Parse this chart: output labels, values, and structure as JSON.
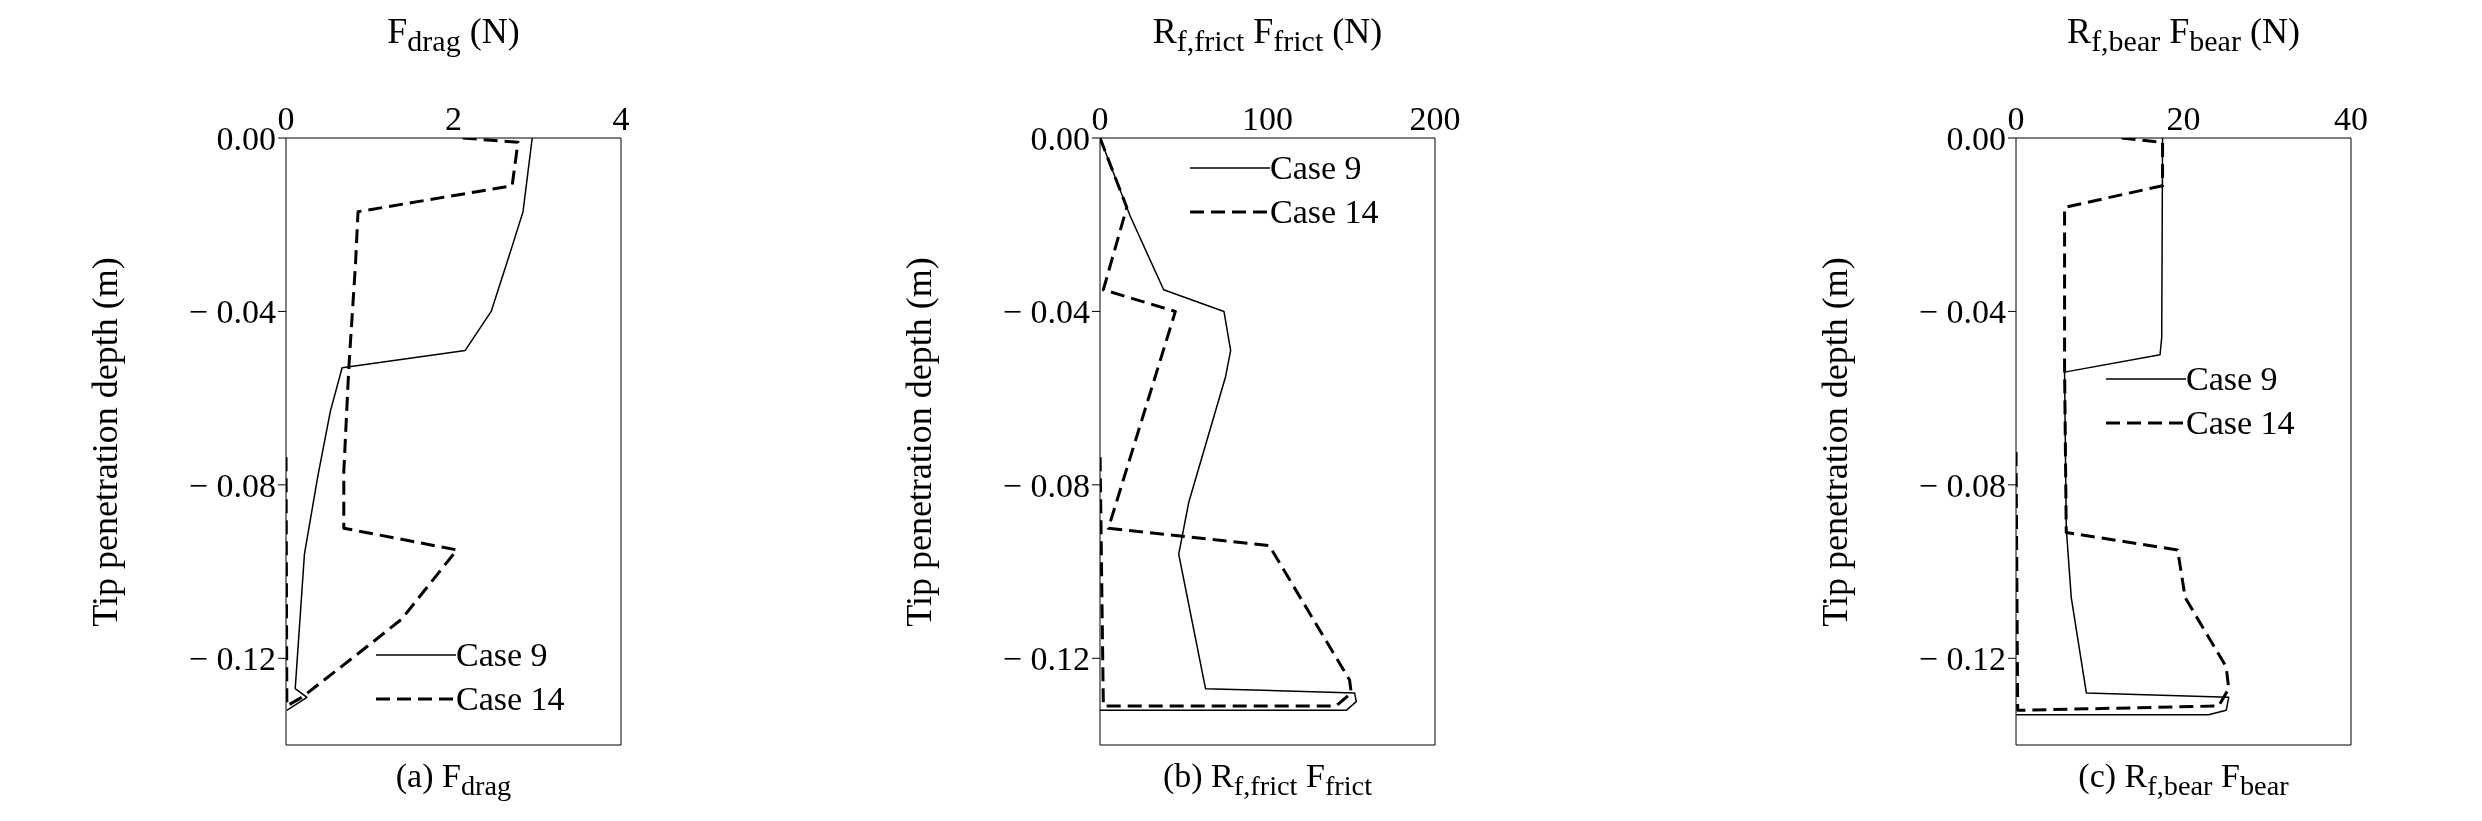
{
  "chart_data": [
    {
      "type": "line",
      "xlabel": "F$_{drag}$ (N)",
      "ylabel": "Tip penetration depth (m)",
      "annotations": [
        "(a) F$_{drag}$"
      ],
      "xlim": [
        0,
        4
      ],
      "xticks": [
        0,
        2,
        4
      ],
      "ylim": [
        -0.14,
        0
      ],
      "yticks": [
        {
          "value": 0,
          "label": "0.00"
        },
        {
          "value": -0.04,
          "label": "− 0.04"
        },
        {
          "value": -0.08,
          "label": "− 0.08"
        },
        {
          "value": -0.12,
          "label": "− 0.12"
        }
      ],
      "legend": "bottom right",
      "grid": false,
      "marker": "none",
      "series": [
        {
          "name": "Case 9",
          "color": "#000000",
          "line_style": "solid",
          "x": [
            2.94,
            2.83,
            2.7,
            2.45,
            2.14,
            0.67,
            0.53,
            0.38,
            0.22,
            0.11,
            0.25,
            0.01
          ],
          "values": [
            0,
            -0.017,
            -0.025,
            -0.04,
            -0.049,
            -0.053,
            -0.063,
            -0.078,
            -0.096,
            -0.127,
            -0.129,
            -0.132
          ]
        },
        {
          "name": "Case 14",
          "color": "#000000",
          "line_style": "dashed",
          "x": [
            2.11,
            2.77,
            2.7,
            0.86,
            0.83,
            0.75,
            0.69,
            0.69,
            2.04,
            1.38,
            0.79,
            0.19,
            0.01,
            0
          ],
          "values": [
            0,
            -0.001,
            -0.011,
            -0.017,
            -0.029,
            -0.053,
            -0.077,
            -0.09,
            -0.095,
            -0.111,
            -0.12,
            -0.129,
            -0.131,
            -0.072
          ]
        }
      ]
    },
    {
      "type": "line",
      "xlabel": "R$_{f,frict}$ F$_{frict}$ (N)",
      "ylabel": "Tip penetration depth (m)",
      "annotations": [
        "(b) R$_{f,frict}$ F$_{frict}$"
      ],
      "xlim": [
        0,
        200
      ],
      "xticks": [
        0,
        100,
        200
      ],
      "ylim": [
        -0.14,
        0
      ],
      "yticks": [
        {
          "value": 0,
          "label": "0.00"
        },
        {
          "value": -0.04,
          "label": "− 0.04"
        },
        {
          "value": -0.08,
          "label": "− 0.08"
        },
        {
          "value": -0.12,
          "label": "− 0.12"
        }
      ],
      "legend": "top right",
      "grid": false,
      "marker": "none",
      "series": [
        {
          "name": "Case 9",
          "color": "#000000",
          "line_style": "solid",
          "x": [
            0,
            18,
            38,
            74,
            78,
            75,
            53,
            47,
            63,
            152,
            153,
            147,
            0
          ],
          "values": [
            0,
            -0.018,
            -0.035,
            -0.04,
            -0.049,
            -0.055,
            -0.084,
            -0.096,
            -0.127,
            -0.128,
            -0.13,
            -0.132,
            -0.132
          ]
        },
        {
          "name": "Case 14",
          "color": "#000000",
          "line_style": "dashed",
          "x": [
            0,
            16,
            2,
            45,
            5,
            101,
            149,
            150,
            141,
            2,
            0
          ],
          "values": [
            0,
            -0.016,
            -0.035,
            -0.04,
            -0.09,
            -0.094,
            -0.125,
            -0.128,
            -0.131,
            -0.131,
            -0.072
          ]
        }
      ]
    },
    {
      "type": "line",
      "xlabel": "R$_{f,bear}$ F$_{bear}$ (N)",
      "ylabel": "Tip penetration depth (m)",
      "annotations": [
        "(c) R$_{f,bear}$ F$_{bear}$"
      ],
      "xlim": [
        0,
        40
      ],
      "xticks": [
        0,
        20,
        40
      ],
      "ylim": [
        -0.14,
        0
      ],
      "yticks": [
        {
          "value": 0,
          "label": "0.00"
        },
        {
          "value": -0.04,
          "label": "− 0.04"
        },
        {
          "value": -0.08,
          "label": "− 0.08"
        },
        {
          "value": -0.12,
          "label": "− 0.12"
        }
      ],
      "legend": "right",
      "grid": false,
      "marker": "none",
      "series": [
        {
          "name": "Case 9",
          "color": "#000000",
          "line_style": "solid",
          "x": [
            17.5,
            17.4,
            17.2,
            5.8,
            6,
            6.6,
            8.4,
            25.4,
            25.1,
            23,
            0
          ],
          "values": [
            0,
            -0.046,
            -0.05,
            -0.054,
            -0.09,
            -0.106,
            -0.128,
            -0.129,
            -0.132,
            -0.133,
            -0.133
          ]
        },
        {
          "name": "Case 14",
          "color": "#000000",
          "line_style": "dashed",
          "x": [
            12.6,
            17.5,
            17.5,
            5.8,
            5.8,
            6,
            19.3,
            20.2,
            25.1,
            25.4,
            24.2,
            0.2,
            0
          ],
          "values": [
            0,
            -0.001,
            -0.011,
            -0.016,
            -0.053,
            -0.091,
            -0.095,
            -0.106,
            -0.122,
            -0.127,
            -0.131,
            -0.132,
            -0.071
          ]
        }
      ]
    }
  ]
}
